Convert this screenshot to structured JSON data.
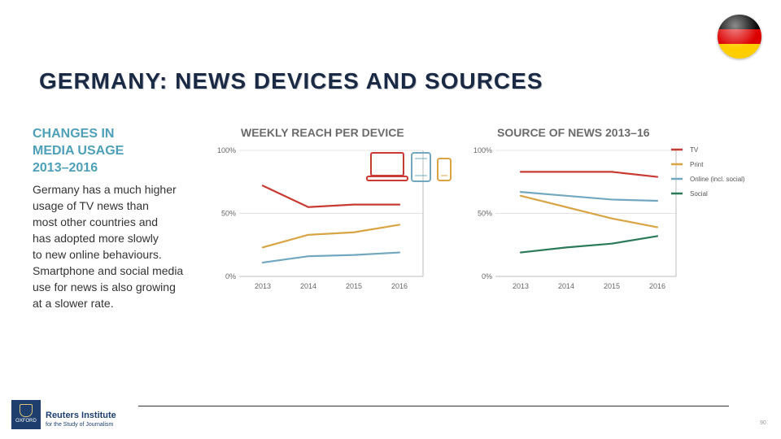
{
  "header": {
    "title": "GERMANY: NEWS DEVICES AND SOURCES",
    "flag_colors": [
      "#000000",
      "#dd0000",
      "#ffce00"
    ]
  },
  "sidebar": {
    "heading": "CHANGES IN\nMEDIA USAGE\n2013–2016",
    "body": "Germany has a much higher\nusage of TV news than\nmost other countries and\nhas adopted more slowly\nto new online behaviours.\nSmartphone and social media\nuse for news is also growing\nat a slower rate."
  },
  "chart_data": [
    {
      "type": "line",
      "title": "WEEKLY REACH PER DEVICE",
      "x": [
        "2013",
        "2014",
        "2015",
        "2016"
      ],
      "yticks": [
        "0%",
        "50%",
        "100%"
      ],
      "ylim": [
        0,
        100
      ],
      "grid": "horizontal",
      "series": [
        {
          "color": "#c83a32",
          "icon": "laptop-icon",
          "values": [
            72,
            55,
            57,
            57
          ]
        },
        {
          "color": "#d9a443",
          "icon": "smartphone-icon",
          "values": [
            23,
            33,
            35,
            41
          ]
        },
        {
          "color": "#72a8bf",
          "icon": "tablet-icon",
          "values": [
            11,
            16,
            17,
            19
          ]
        }
      ]
    },
    {
      "type": "line",
      "title": "SOURCE OF NEWS 2013–16",
      "x": [
        "2013",
        "2014",
        "2015",
        "2016"
      ],
      "yticks": [
        "0%",
        "50%",
        "100%"
      ],
      "ylim": [
        0,
        100
      ],
      "grid": "horizontal",
      "legend_position": "right",
      "series": [
        {
          "name": "TV",
          "color": "#c83a32",
          "values": [
            83,
            83,
            83,
            79
          ]
        },
        {
          "name": "Print",
          "color": "#d9a443",
          "values": [
            64,
            55,
            46,
            39
          ]
        },
        {
          "name": "Online (incl. social)",
          "color": "#72a8bf",
          "values": [
            67,
            64,
            61,
            60
          ]
        },
        {
          "name": "Social",
          "color": "#2a7a5a",
          "values": [
            19,
            23,
            26,
            32
          ]
        }
      ]
    }
  ],
  "footer": {
    "logo_name": "Reuters Institute",
    "logo_sub": "for the Study of Journalism",
    "crest_text": "OXFORD",
    "page_number": "90"
  }
}
